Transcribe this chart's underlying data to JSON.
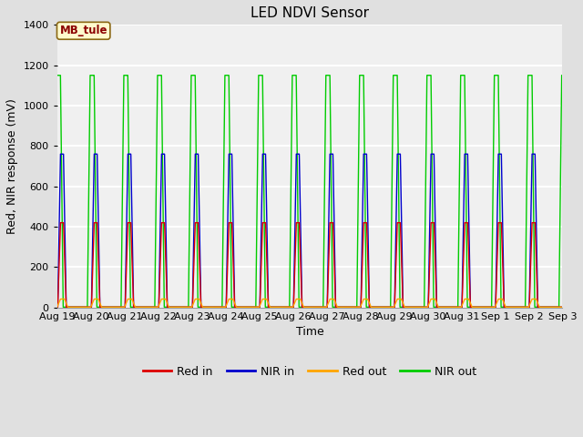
{
  "title": "LED NDVI Sensor",
  "ylabel": "Red, NIR response (mV)",
  "xlabel": "Time",
  "annotation_text": "MB_tule",
  "annotation_color": "#8B0000",
  "annotation_bg": "#FFFACD",
  "annotation_border": "#8B6914",
  "ylim": [
    0,
    1400
  ],
  "x_tick_labels": [
    "Aug 19",
    "Aug 20",
    "Aug 21",
    "Aug 22",
    "Aug 23",
    "Aug 24",
    "Aug 25",
    "Aug 26",
    "Aug 27",
    "Aug 28",
    "Aug 29",
    "Aug 30",
    "Aug 31",
    "Sep 1",
    "Sep 2",
    "Sep 3"
  ],
  "red_in_color": "#DD0000",
  "nir_in_color": "#0000CC",
  "red_out_color": "#FFA500",
  "nir_out_color": "#00CC00",
  "background_color": "#E0E0E0",
  "plot_bg_color": "#DCDCDC",
  "inner_bg_color": "#F0F0F0",
  "grid_color": "#FFFFFF",
  "legend_labels": [
    "Red in",
    "NIR in",
    "Red out",
    "NIR out"
  ],
  "red_in_peak": 420,
  "nir_in_peak": 760,
  "red_out_peak": 42,
  "nir_out_peak": 1150,
  "title_fontsize": 11,
  "axis_fontsize": 9,
  "tick_fontsize": 8
}
